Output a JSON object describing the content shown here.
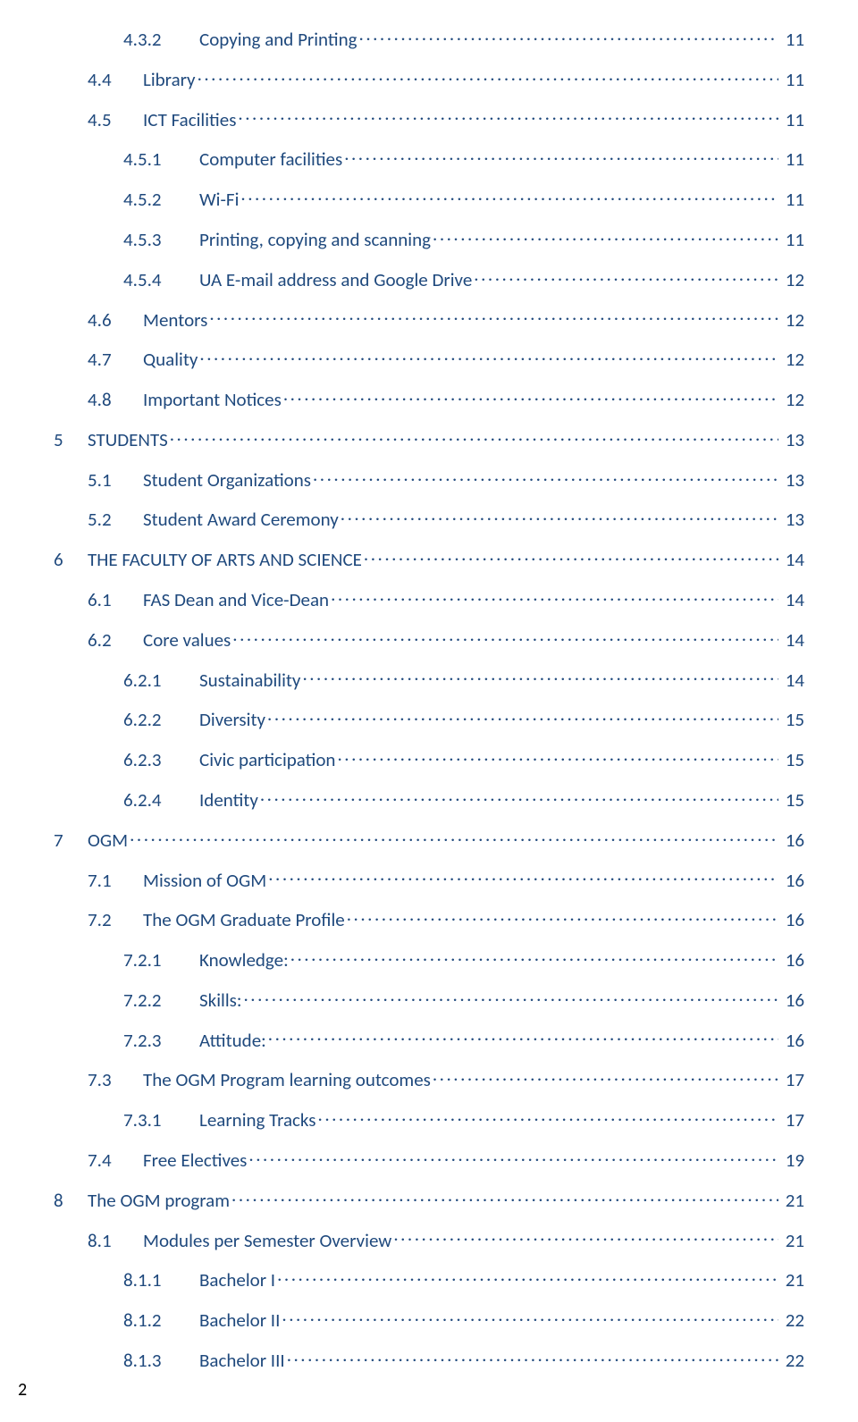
{
  "text_color": "#1f497d",
  "background_color": "#ffffff",
  "page_number": "2",
  "entries": [
    {
      "indent": 2,
      "num": "4.3.2",
      "title": "Copying and Printing",
      "page": "11"
    },
    {
      "indent": 1,
      "num": "4.4",
      "title": "Library",
      "page": "11"
    },
    {
      "indent": 1,
      "num": "4.5",
      "title": "ICT Facilities",
      "page": "11"
    },
    {
      "indent": 2,
      "num": "4.5.1",
      "title": "Computer facilities",
      "page": "11"
    },
    {
      "indent": 2,
      "num": "4.5.2",
      "title": "Wi-Fi",
      "page": "11"
    },
    {
      "indent": 2,
      "num": "4.5.3",
      "title": "Printing, copying and scanning",
      "page": "11"
    },
    {
      "indent": 2,
      "num": "4.5.4",
      "title": "UA E-mail address and Google Drive",
      "page": "12"
    },
    {
      "indent": 1,
      "num": "4.6",
      "title": "Mentors",
      "page": "12"
    },
    {
      "indent": 1,
      "num": "4.7",
      "title": "Quality",
      "page": "12"
    },
    {
      "indent": 1,
      "num": "4.8",
      "title": "Important Notices",
      "page": "12"
    },
    {
      "indent": 0,
      "num": "5",
      "title": "STUDENTS",
      "page": "13"
    },
    {
      "indent": 1,
      "num": "5.1",
      "title": "Student Organizations",
      "page": "13"
    },
    {
      "indent": 1,
      "num": "5.2",
      "title": "Student Award Ceremony",
      "page": "13"
    },
    {
      "indent": 0,
      "num": "6",
      "title": "THE FACULTY OF ARTS AND SCIENCE",
      "page": "14"
    },
    {
      "indent": 1,
      "num": "6.1",
      "title": "FAS Dean and Vice-Dean",
      "page": "14"
    },
    {
      "indent": 1,
      "num": "6.2",
      "title": "Core values",
      "page": "14"
    },
    {
      "indent": 2,
      "num": "6.2.1",
      "title": "Sustainability",
      "page": "14"
    },
    {
      "indent": 2,
      "num": "6.2.2",
      "title": "Diversity",
      "page": "15"
    },
    {
      "indent": 2,
      "num": "6.2.3",
      "title": "Civic participation",
      "page": "15"
    },
    {
      "indent": 2,
      "num": "6.2.4",
      "title": "Identity",
      "page": "15"
    },
    {
      "indent": 0,
      "num": "7",
      "title": "OGM",
      "page": "16"
    },
    {
      "indent": 1,
      "num": "7.1",
      "title": "Mission of OGM",
      "page": "16"
    },
    {
      "indent": 1,
      "num": "7.2",
      "title": "The OGM Graduate Profile",
      "page": "16"
    },
    {
      "indent": 2,
      "num": "7.2.1",
      "title": "Knowledge:",
      "page": "16"
    },
    {
      "indent": 2,
      "num": "7.2.2",
      "title": "Skills:",
      "page": "16"
    },
    {
      "indent": 2,
      "num": "7.2.3",
      "title": "Attitude:",
      "page": "16"
    },
    {
      "indent": 1,
      "num": "7.3",
      "title": "The OGM Program learning outcomes",
      "page": "17"
    },
    {
      "indent": 2,
      "num": "7.3.1",
      "title": "Learning Tracks",
      "page": "17"
    },
    {
      "indent": 1,
      "num": "7.4",
      "title": "Free Electives",
      "page": "19"
    },
    {
      "indent": 0,
      "num": "8",
      "title": "The OGM program",
      "page": "21"
    },
    {
      "indent": 1,
      "num": "8.1",
      "title": "Modules per Semester Overview",
      "page": "21"
    },
    {
      "indent": 2,
      "num": "8.1.1",
      "title": "Bachelor I",
      "page": "21"
    },
    {
      "indent": 2,
      "num": "8.1.2",
      "title": "Bachelor II",
      "page": "22"
    },
    {
      "indent": 2,
      "num": "8.1.3",
      "title": "Bachelor III",
      "page": "22"
    }
  ]
}
